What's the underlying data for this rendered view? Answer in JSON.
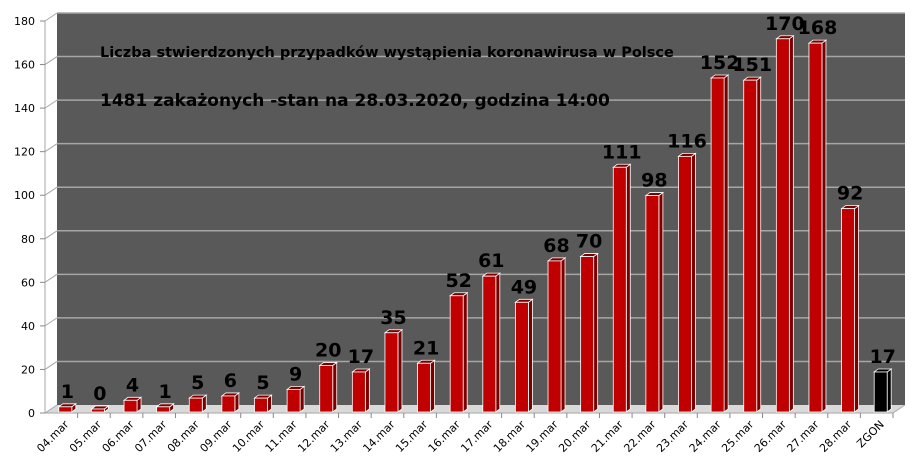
{
  "chart_data": {
    "type": "bar",
    "style": "3d-column",
    "title": "Liczba stwierdzonych przypadków wystąpienia koronawirusa w Polsce",
    "subtitle": "1481 zakażonych  -stan  na 28.03.2020, godzina  14:00",
    "xlabel": "",
    "ylabel": "",
    "ylim": [
      0,
      180
    ],
    "yticks": [
      0,
      20,
      40,
      60,
      80,
      100,
      120,
      140,
      160,
      180
    ],
    "grid": true,
    "legend": "none",
    "categories": [
      "04.mar",
      "05.mar",
      "06.mar",
      "07.mar",
      "08.mar",
      "09.mar",
      "10.mar",
      "11.mar",
      "12.mar",
      "13.mar",
      "14.mar",
      "15.mar",
      "16.mar",
      "17.mar",
      "18.mar",
      "19.mar",
      "20.mar",
      "21.mar",
      "22.mar",
      "23.mar",
      "24.mar",
      "25.mar",
      "26.mar",
      "27.mar",
      "28.mar",
      "ZGON"
    ],
    "values": [
      1,
      0,
      4,
      1,
      5,
      6,
      5,
      9,
      20,
      17,
      35,
      21,
      52,
      61,
      49,
      68,
      70,
      111,
      98,
      116,
      152,
      151,
      170,
      168,
      92,
      17
    ],
    "colors": {
      "bar": "#c00000",
      "bar_highlight": "ZGON",
      "bar_highlight_color": "#000000",
      "wall": "#595959",
      "floor": "#d9d9d9",
      "gridline": "#a6a6a6"
    }
  }
}
